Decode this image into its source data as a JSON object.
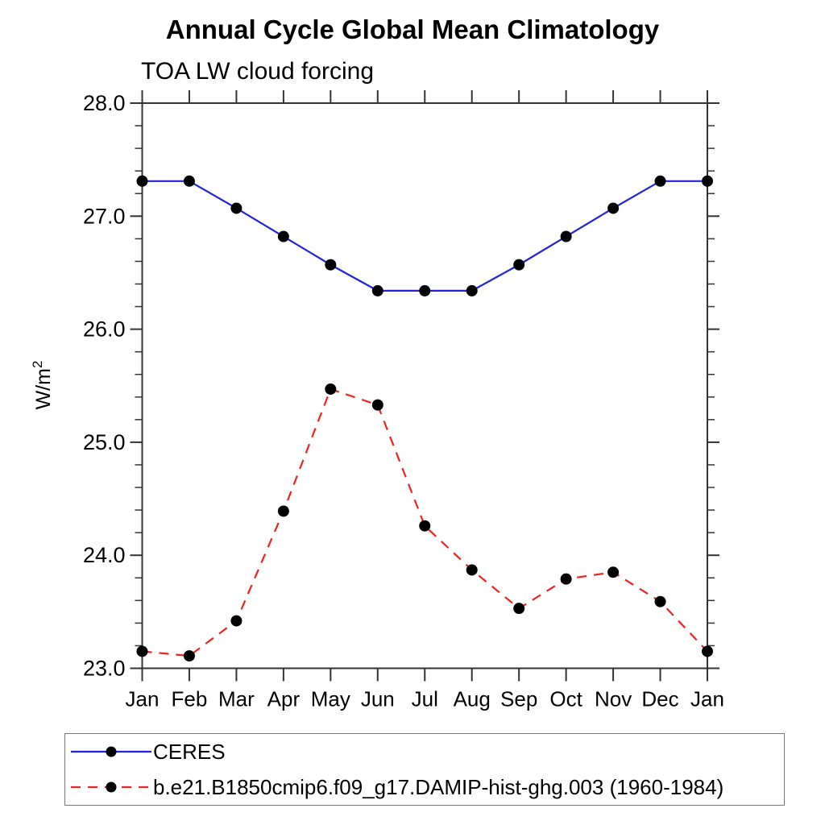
{
  "header": {
    "title": "Annual Cycle Global Mean Climatology",
    "subtitle": "TOA LW cloud forcing"
  },
  "chart_data": {
    "type": "line",
    "title": "Annual Cycle Global Mean Climatology",
    "subtitle": "TOA LW cloud forcing",
    "ylabel": {
      "base": "W/m",
      "sup": "2"
    },
    "xlabel": "",
    "categories": [
      "Jan",
      "Feb",
      "Mar",
      "Apr",
      "May",
      "Jun",
      "Jul",
      "Aug",
      "Sep",
      "Oct",
      "Nov",
      "Dec",
      "Jan"
    ],
    "ylim": [
      23.0,
      28.0
    ],
    "ytick_values": [
      23.0,
      24.0,
      25.0,
      26.0,
      27.0,
      28.0
    ],
    "ytick_labels": [
      "23.0",
      "24.0",
      "25.0",
      "26.0",
      "27.0",
      "28.0"
    ],
    "minor_tick_step": 0.2,
    "grid": false,
    "legend_position": "bottom",
    "axis_color": "#333333",
    "marker_color": "#000000",
    "series": [
      {
        "name": "CERES",
        "color": "#2222dd",
        "style": "solid",
        "marker": "circle",
        "values": [
          27.31,
          27.31,
          27.07,
          26.82,
          26.57,
          26.34,
          26.34,
          26.34,
          26.57,
          26.82,
          27.07,
          27.31,
          27.31
        ]
      },
      {
        "name": "b.e21.B1850cmip6.f09_g17.DAMIP-hist-ghg.003 (1960-1984)",
        "color": "#ee2222",
        "style": "dashed",
        "marker": "circle",
        "values": [
          23.15,
          23.11,
          23.42,
          24.39,
          25.47,
          25.33,
          24.26,
          23.87,
          23.53,
          23.79,
          23.85,
          23.59,
          23.15
        ]
      }
    ]
  }
}
